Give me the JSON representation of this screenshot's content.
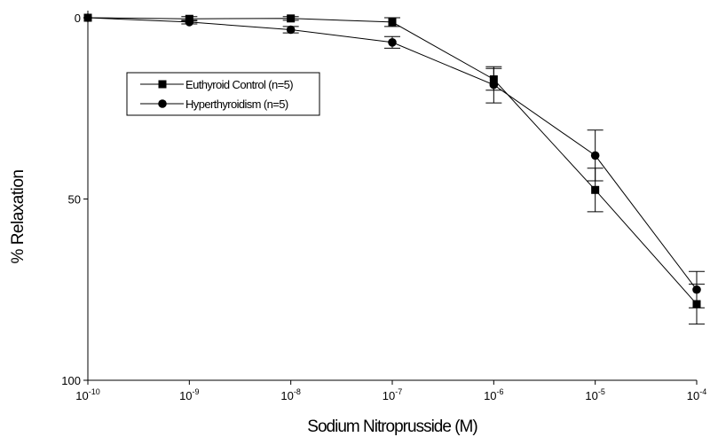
{
  "chart_data": {
    "type": "line",
    "title": "",
    "xlabel": "Sodium Nitroprusside (M)",
    "ylabel": "% Relaxation",
    "x_scale": "log",
    "x_tick_base": "10",
    "x_tick_exponents": [
      "-10",
      "-9",
      "-8",
      "-7",
      "-6",
      "-5",
      "-4"
    ],
    "x": [
      1e-10,
      1e-09,
      1e-08,
      1e-07,
      1e-06,
      1e-05,
      0.0001
    ],
    "ylim": [
      0,
      100
    ],
    "y_inverted": true,
    "y_ticks": [
      "0",
      "50",
      "100"
    ],
    "y_tick_values": [
      0,
      50,
      100
    ],
    "grid": false,
    "legend_position": "top-left",
    "series": [
      {
        "name": "Euthyroid Control (n=5)",
        "marker": "square",
        "values": [
          0,
          0.3,
          0.2,
          1.2,
          17,
          47.5,
          79
        ],
        "errors": [
          0,
          0.6,
          0.5,
          1.2,
          3,
          6,
          5.5
        ]
      },
      {
        "name": "Hyperthyroidism (n=5)",
        "marker": "circle",
        "values": [
          0,
          1.2,
          3.3,
          6.8,
          18.5,
          38,
          75
        ],
        "errors": [
          0,
          0.5,
          0.9,
          1.6,
          5,
          7,
          5
        ]
      }
    ]
  }
}
